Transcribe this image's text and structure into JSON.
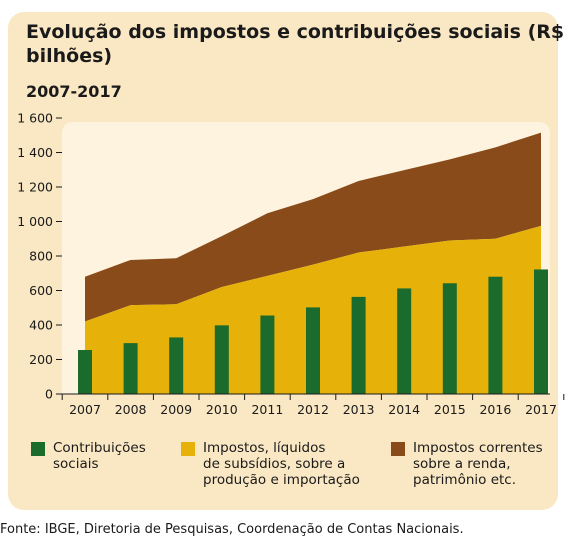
{
  "chart_data": {
    "type": "area",
    "title": "Evolução dos impostos e contribuições sociais (R$ bilhões)",
    "subtitle": "2007-2017",
    "xlabel": "",
    "ylabel": "",
    "ylim": [
      0,
      1600
    ],
    "yticks": [
      0,
      200,
      400,
      600,
      800,
      1000,
      1200,
      1400,
      1600
    ],
    "ytick_labels": [
      "0",
      "200",
      "400",
      "600",
      "800",
      "1 000",
      "1 200",
      "1 400",
      "1 600"
    ],
    "categories": [
      "2007",
      "2008",
      "2009",
      "2010",
      "2011",
      "2012",
      "2013",
      "2014",
      "2015",
      "2016",
      "2017"
    ],
    "series": [
      {
        "name": "Contribuições sociais",
        "mark": "bar",
        "color": "#1a6b2c",
        "values": [
          255,
          295,
          328,
          398,
          455,
          502,
          563,
          612,
          642,
          680,
          722
        ]
      },
      {
        "name": "Impostos, líquidos de subsídios, sobre a produção e importação",
        "mark": "area",
        "color": "#e6b20a",
        "values": [
          420,
          515,
          520,
          620,
          685,
          750,
          820,
          855,
          890,
          900,
          975
        ]
      },
      {
        "name": "Impostos correntes sobre a renda, patrimônio etc.",
        "mark": "area_stacked",
        "color": "#8a4b1a",
        "values": [
          680,
          777,
          787,
          915,
          1048,
          1130,
          1235,
          1298,
          1360,
          1430,
          1515
        ]
      }
    ],
    "grid": false,
    "legend_position": "bottom"
  },
  "legend": [
    {
      "lines": [
        "Contribuições",
        "sociais"
      ],
      "color": "#1a6b2c"
    },
    {
      "lines": [
        "Impostos, líquidos",
        "de subsídios, sobre a",
        "produção e importação"
      ],
      "color": "#e6b20a"
    },
    {
      "lines": [
        "Impostos correntes",
        "sobre a renda,",
        "patrimônio etc."
      ],
      "color": "#8a4b1a"
    }
  ],
  "source": "Fonte: IBGE, Diretoria de Pesquisas, Coordenação de Contas Nacionais.",
  "colors": {
    "panel": "#fae8c4",
    "plot_area": "#fdf3df"
  }
}
